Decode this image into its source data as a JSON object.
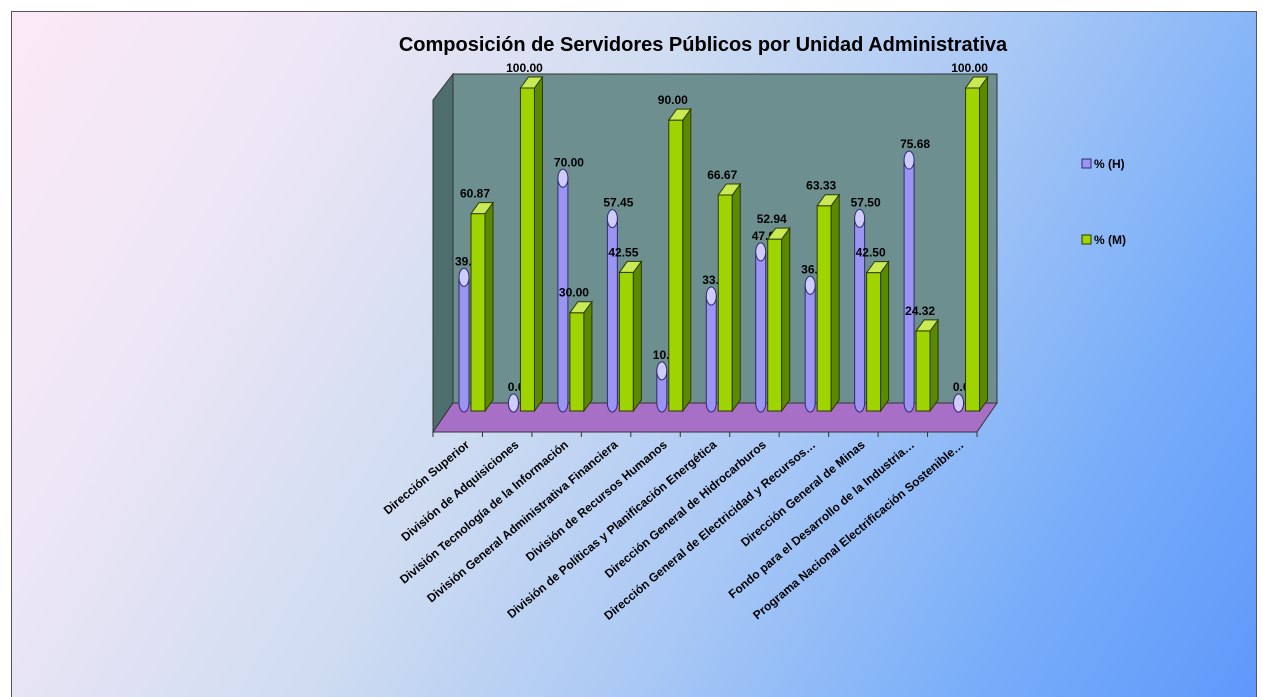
{
  "colors": {
    "male_fill": "#9c94f2",
    "male_top": "#cfcbff",
    "male_stroke": "#2e2a70",
    "female_front": "#9fd400",
    "female_side": "#5b8a00",
    "female_top": "#c9ea55",
    "female_stroke": "#2a3a00",
    "floor": "#a86fc6",
    "back_wall": "#6d8f8f"
  },
  "chart_data": {
    "type": "bar",
    "style": "3d-clustered-column",
    "title": "Composición de Servidores Públicos por Unidad Administrativa",
    "xlabel": "",
    "ylabel": "",
    "ylim": [
      0,
      100
    ],
    "grid": false,
    "legend_position": "right",
    "categories": [
      "Dirección Superior",
      "División de Adquisiciones",
      "División Tecnología de la Información",
      "División General Administrativa Financiera",
      "División de Recursos Humanos",
      "División de Políticas y Planificación Energética",
      "Dirección General de Hidrocarburos",
      "Dirección General de Electricidad y  Recursos…",
      "Dirección General de Minas",
      "Fondo para el  Desarrollo de la Industria…",
      "Programa Nacional Electrificación Sostenible…"
    ],
    "series": [
      {
        "name": "% (H)",
        "values": [
          39.13,
          0.0,
          70.0,
          57.45,
          10.0,
          33.33,
          47.06,
          36.67,
          57.5,
          75.68,
          0.0
        ],
        "labels": [
          "39.13",
          "0.00",
          "70.00",
          "57.45",
          "10.00",
          "33.33",
          "47.06",
          "36.67",
          "57.50",
          "75.68",
          "0.00"
        ]
      },
      {
        "name": "% (M)",
        "values": [
          60.87,
          100.0,
          30.0,
          42.55,
          90.0,
          66.67,
          52.94,
          63.33,
          42.5,
          24.32,
          100.0
        ],
        "labels": [
          "60.87",
          "100.00",
          "30.00",
          "42.55",
          "90.00",
          "66.67",
          "52.94",
          "63.33",
          "42.50",
          "24.32",
          "100.00"
        ]
      }
    ]
  }
}
